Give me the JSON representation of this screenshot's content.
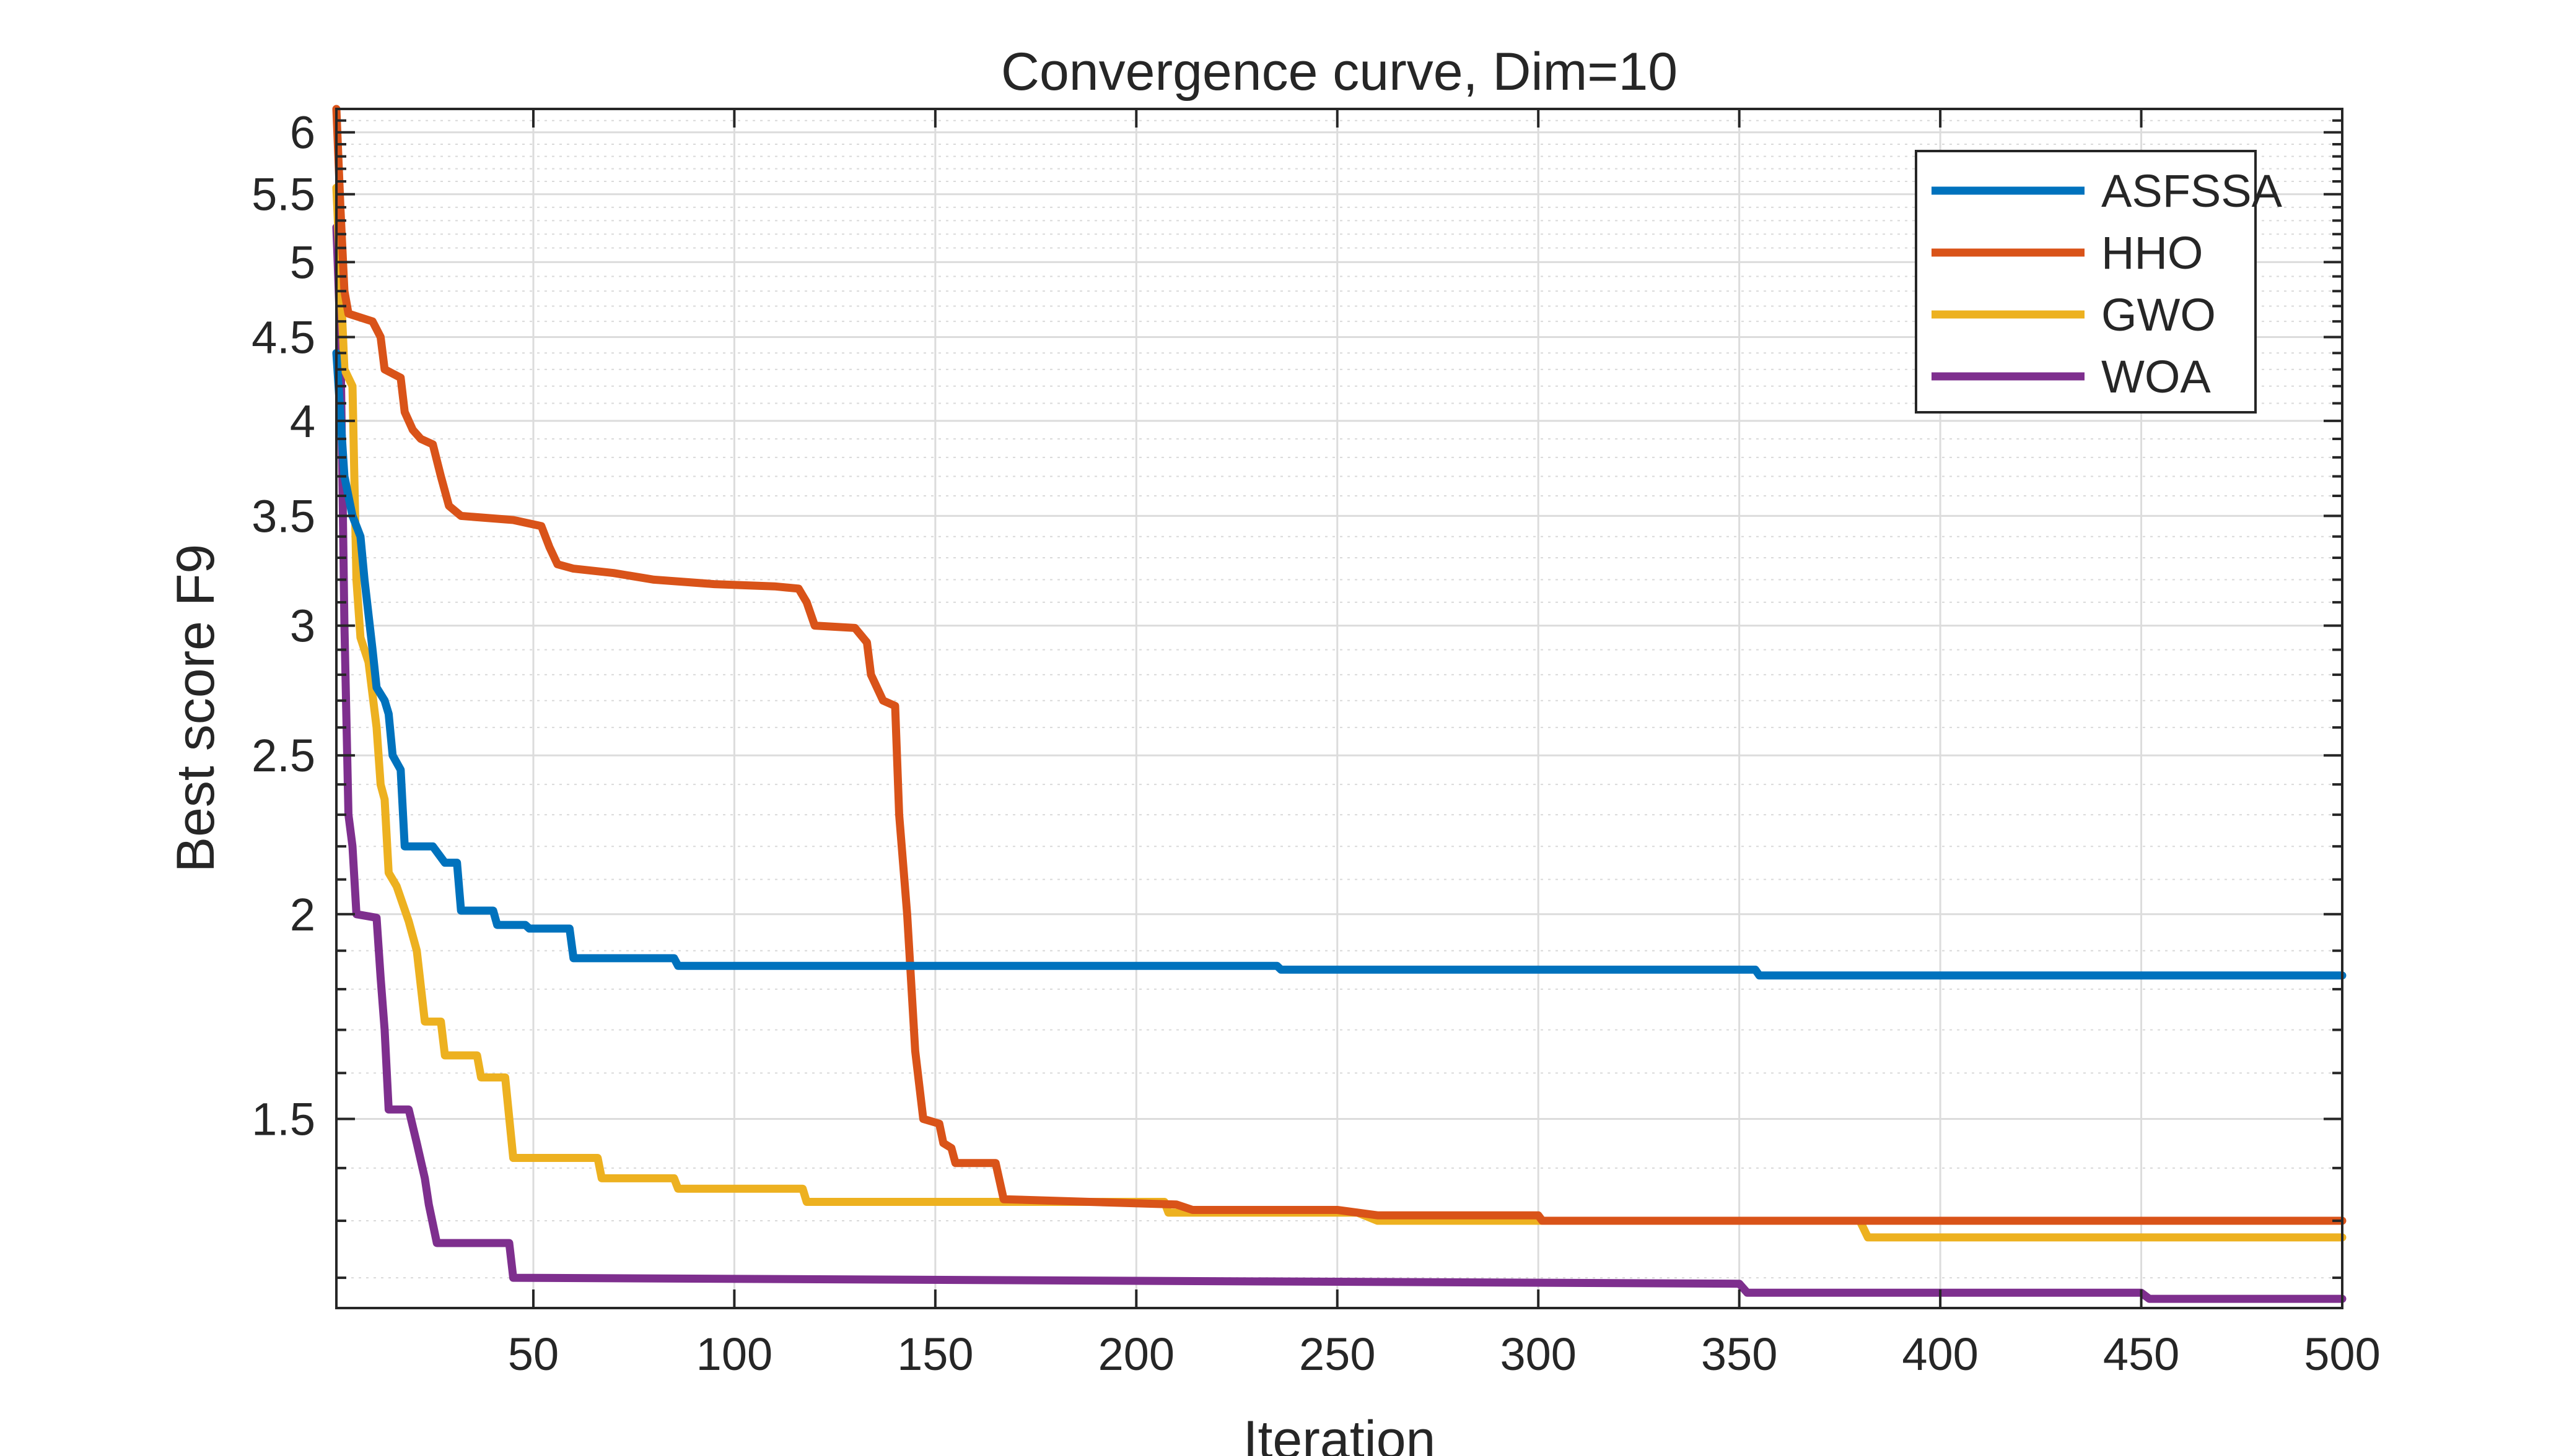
{
  "chart_data": {
    "type": "line",
    "title": "Convergence curve, Dim=10",
    "xlabel": "Iteration",
    "ylabel": "Best score F9",
    "xlim": [
      1,
      500
    ],
    "ylim": [
      1.15,
      6.2
    ],
    "yscale": "log",
    "grid": true,
    "minor_grid": true,
    "legend_position": "top-right",
    "xticks": [
      50,
      100,
      150,
      200,
      250,
      300,
      350,
      400,
      450,
      500
    ],
    "xtick_labels": [
      "50",
      "100",
      "150",
      "200",
      "250",
      "300",
      "350",
      "400",
      "450",
      "500"
    ],
    "yticks": [
      1.5,
      2,
      2.5,
      3,
      3.5,
      4,
      4.5,
      5,
      5.5,
      6
    ],
    "ytick_labels": [
      "1.5",
      "2",
      "2.5",
      "3",
      "3.5",
      "4",
      "4.5",
      "5",
      "5.5",
      "6"
    ],
    "series": [
      {
        "name": "ASFSSA",
        "color": "#0072BD",
        "points": [
          [
            1,
            4.4
          ],
          [
            3,
            3.7
          ],
          [
            5,
            3.5
          ],
          [
            7,
            3.4
          ],
          [
            8,
            3.2
          ],
          [
            10,
            2.9
          ],
          [
            11,
            2.75
          ],
          [
            13,
            2.7
          ],
          [
            14,
            2.65
          ],
          [
            15,
            2.5
          ],
          [
            17,
            2.45
          ],
          [
            18,
            2.2
          ],
          [
            25,
            2.2
          ],
          [
            28,
            2.15
          ],
          [
            31,
            2.15
          ],
          [
            32,
            2.01
          ],
          [
            40,
            2.01
          ],
          [
            41,
            1.97
          ],
          [
            48,
            1.97
          ],
          [
            49,
            1.96
          ],
          [
            59,
            1.96
          ],
          [
            60,
            1.88
          ],
          [
            85,
            1.88
          ],
          [
            86,
            1.86
          ],
          [
            235,
            1.86
          ],
          [
            236,
            1.85
          ],
          [
            354,
            1.85
          ],
          [
            355,
            1.835
          ],
          [
            500,
            1.835
          ]
        ]
      },
      {
        "name": "HHO",
        "color": "#D95319",
        "points": [
          [
            1,
            6.2
          ],
          [
            2,
            5.4
          ],
          [
            3,
            4.8
          ],
          [
            4,
            4.65
          ],
          [
            10,
            4.6
          ],
          [
            12,
            4.5
          ],
          [
            13,
            4.3
          ],
          [
            17,
            4.25
          ],
          [
            18,
            4.05
          ],
          [
            20,
            3.95
          ],
          [
            22,
            3.9
          ],
          [
            25,
            3.87
          ],
          [
            27,
            3.7
          ],
          [
            29,
            3.55
          ],
          [
            32,
            3.5
          ],
          [
            45,
            3.48
          ],
          [
            52,
            3.45
          ],
          [
            54,
            3.35
          ],
          [
            56,
            3.27
          ],
          [
            60,
            3.25
          ],
          [
            70,
            3.23
          ],
          [
            80,
            3.2
          ],
          [
            95,
            3.18
          ],
          [
            110,
            3.17
          ],
          [
            116,
            3.16
          ],
          [
            118,
            3.1
          ],
          [
            120,
            3.0
          ],
          [
            130,
            2.99
          ],
          [
            133,
            2.93
          ],
          [
            134,
            2.8
          ],
          [
            137,
            2.7
          ],
          [
            140,
            2.68
          ],
          [
            141,
            2.3
          ],
          [
            143,
            2.0
          ],
          [
            145,
            1.65
          ],
          [
            147,
            1.5
          ],
          [
            151,
            1.49
          ],
          [
            152,
            1.45
          ],
          [
            154,
            1.44
          ],
          [
            155,
            1.41
          ],
          [
            165,
            1.41
          ],
          [
            167,
            1.34
          ],
          [
            210,
            1.33
          ],
          [
            214,
            1.32
          ],
          [
            250,
            1.32
          ],
          [
            260,
            1.31
          ],
          [
            300,
            1.31
          ],
          [
            301,
            1.3
          ],
          [
            500,
            1.3
          ]
        ]
      },
      {
        "name": "GWO",
        "color": "#EDB120",
        "points": [
          [
            1,
            5.55
          ],
          [
            2,
            4.9
          ],
          [
            3,
            4.3
          ],
          [
            5,
            4.2
          ],
          [
            6,
            3.2
          ],
          [
            7,
            2.95
          ],
          [
            9,
            2.85
          ],
          [
            11,
            2.6
          ],
          [
            12,
            2.4
          ],
          [
            13,
            2.35
          ],
          [
            14,
            2.12
          ],
          [
            16,
            2.08
          ],
          [
            19,
            1.98
          ],
          [
            21,
            1.9
          ],
          [
            23,
            1.72
          ],
          [
            27,
            1.72
          ],
          [
            28,
            1.64
          ],
          [
            36,
            1.64
          ],
          [
            37,
            1.59
          ],
          [
            43,
            1.59
          ],
          [
            45,
            1.42
          ],
          [
            66,
            1.42
          ],
          [
            67,
            1.38
          ],
          [
            85,
            1.38
          ],
          [
            86,
            1.36
          ],
          [
            117,
            1.36
          ],
          [
            118,
            1.335
          ],
          [
            207,
            1.335
          ],
          [
            208,
            1.315
          ],
          [
            255,
            1.315
          ],
          [
            260,
            1.3
          ],
          [
            380,
            1.3
          ],
          [
            382,
            1.27
          ],
          [
            500,
            1.27
          ]
        ]
      },
      {
        "name": "WOA",
        "color": "#7E2F8E",
        "points": [
          [
            1,
            5.25
          ],
          [
            2,
            4.5
          ],
          [
            3,
            3.0
          ],
          [
            4,
            2.3
          ],
          [
            5,
            2.2
          ],
          [
            6,
            2.0
          ],
          [
            11,
            1.99
          ],
          [
            12,
            1.83
          ],
          [
            13,
            1.7
          ],
          [
            14,
            1.52
          ],
          [
            19,
            1.52
          ],
          [
            21,
            1.45
          ],
          [
            23,
            1.38
          ],
          [
            24,
            1.33
          ],
          [
            26,
            1.26
          ],
          [
            28,
            1.26
          ],
          [
            44,
            1.26
          ],
          [
            45,
            1.2
          ],
          [
            350,
            1.19
          ],
          [
            352,
            1.175
          ],
          [
            450,
            1.175
          ],
          [
            452,
            1.165
          ],
          [
            500,
            1.165
          ]
        ]
      }
    ]
  }
}
